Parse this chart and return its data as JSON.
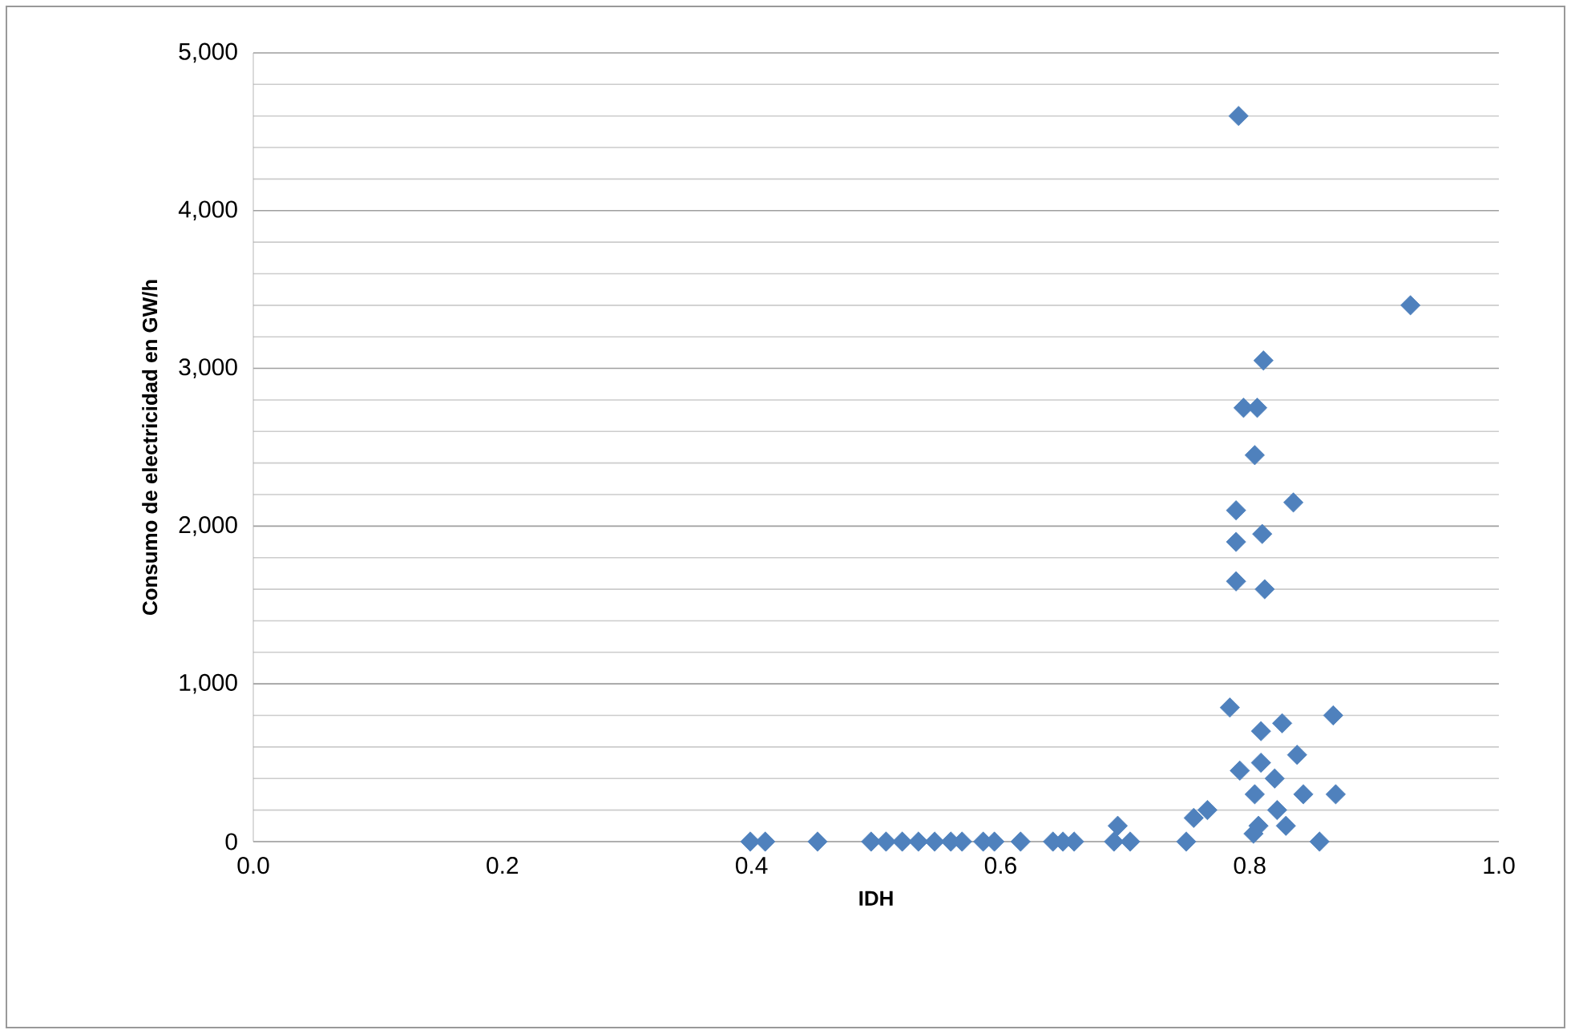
{
  "chart_data": {
    "type": "scatter",
    "xlabel": "IDH",
    "ylabel": "Consumo de electricidad en GW/h",
    "xlim": [
      0,
      1
    ],
    "xticks": [
      {
        "value": 0,
        "label": "0.0"
      },
      {
        "value": 0.2,
        "label": "0.2"
      },
      {
        "value": 0.4,
        "label": "0.4"
      },
      {
        "value": 0.6,
        "label": "0.6"
      },
      {
        "value": 0.8,
        "label": "0.8"
      },
      {
        "value": 1,
        "label": "1.0"
      }
    ],
    "ylim": [
      0,
      5000
    ],
    "yticks": [
      0,
      {
        "value": 1000,
        "label": "1,000"
      },
      {
        "value": 2000,
        "label": "2,000"
      },
      {
        "value": 3000,
        "label": "3,000"
      },
      {
        "value": 4000,
        "label": "4,000"
      },
      {
        "value": 5000,
        "label": "5,000"
      }
    ],
    "grid": "y",
    "marker": "diamond",
    "series": [
      {
        "color": "#4f81bd",
        "x": [
          0.399,
          0.411,
          0.453,
          0.496,
          0.508,
          0.521,
          0.534,
          0.547,
          0.56,
          0.569,
          0.586,
          0.595,
          0.616,
          0.642,
          0.65,
          0.659,
          0.694,
          0.691,
          0.704,
          0.784,
          0.867,
          0.809,
          0.826,
          0.838,
          0.792,
          0.809,
          0.82,
          0.804,
          0.843,
          0.869,
          0.822,
          0.807,
          0.829,
          0.803,
          0.766,
          0.755,
          0.749,
          0.856,
          0.791,
          0.929,
          0.811,
          0.795,
          0.806,
          0.804,
          0.789,
          0.835,
          0.81,
          0.789,
          0.789,
          0.812
        ],
        "values": [
          0,
          0,
          0,
          0,
          0,
          0,
          0,
          0,
          0,
          0,
          0,
          0,
          0,
          0,
          0,
          0,
          100,
          0,
          0,
          850,
          800,
          700,
          750,
          550,
          450,
          500,
          400,
          300,
          300,
          300,
          200,
          100,
          100,
          50,
          200,
          150,
          0,
          0,
          4600,
          3400,
          3050,
          2750,
          2750,
          2450,
          2100,
          2150,
          1950,
          1900,
          1650,
          1600
        ]
      }
    ]
  }
}
